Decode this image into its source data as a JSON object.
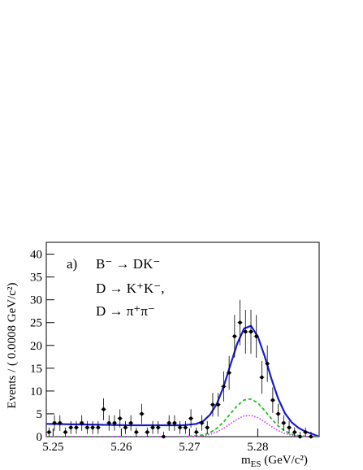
{
  "chart_data": {
    "type": "fit",
    "y_label": "Events / ( 0.0008 GeV/c²)",
    "x_label": {
      "main": "m",
      "sub": "ES",
      "rest": " (GeV/c²)"
    },
    "annotations": [
      "a)",
      "B⁻ → DK⁻",
      "D → K⁺K⁻,",
      "D → π⁺π⁻"
    ],
    "xlim": [
      5.249,
      5.289
    ],
    "ylim": [
      0,
      42.6
    ],
    "xticks": [
      5.25,
      5.26,
      5.27,
      5.28
    ],
    "yticks": [
      0,
      5,
      10,
      15,
      20,
      25,
      30,
      35,
      40
    ],
    "x": [
      5.2494,
      5.2502,
      5.251,
      5.2518,
      5.2526,
      5.2534,
      5.2542,
      5.255,
      5.2558,
      5.2566,
      5.2574,
      5.2582,
      5.259,
      5.2598,
      5.2606,
      5.2614,
      5.2622,
      5.263,
      5.2638,
      5.2646,
      5.2654,
      5.2662,
      5.267,
      5.2678,
      5.2686,
      5.2694,
      5.2702,
      5.271,
      5.2718,
      5.2726,
      5.2734,
      5.2742,
      5.275,
      5.2758,
      5.2766,
      5.2774,
      5.2782,
      5.279,
      5.2798,
      5.2806,
      5.2814,
      5.2822,
      5.283,
      5.2838,
      5.2846,
      5.2854,
      5.2862,
      5.287,
      5.2878
    ],
    "values": [
      1,
      3,
      3,
      1,
      2,
      2,
      3,
      2,
      2,
      2,
      6,
      3,
      3,
      4,
      2,
      3,
      1,
      5,
      1,
      2,
      2,
      0,
      3,
      3,
      2,
      2,
      4,
      1,
      3,
      2,
      7,
      7,
      11,
      14,
      22,
      25,
      23,
      23,
      22,
      13,
      16,
      8,
      5,
      3,
      2,
      1,
      0,
      1,
      0
    ],
    "errors": [
      1,
      1.7,
      1.7,
      1,
      1.4,
      1.4,
      1.7,
      1.4,
      1.4,
      1.4,
      2.4,
      1.7,
      1.7,
      2,
      1.4,
      1.7,
      1,
      2.2,
      1,
      1.4,
      1.4,
      1.1,
      1.7,
      1.7,
      1.4,
      1.4,
      2,
      1,
      1.7,
      1.4,
      2.6,
      2.6,
      3.3,
      3.7,
      4.7,
      5,
      4.8,
      4.8,
      4.7,
      3.6,
      4,
      2.8,
      2.2,
      1.7,
      1.4,
      1,
      1.1,
      1,
      1.1
    ],
    "color": "#000000",
    "curve_x": [
      5.249,
      5.253,
      5.257,
      5.261,
      5.265,
      5.269,
      5.271,
      5.272,
      5.273,
      5.274,
      5.275,
      5.276,
      5.277,
      5.278,
      5.279,
      5.28,
      5.281,
      5.282,
      5.283,
      5.284,
      5.285,
      5.286,
      5.287,
      5.288,
      5.289
    ],
    "curves": [
      {
        "color": "#1a1acc",
        "style": "solid",
        "values": [
          2.8,
          2.7,
          2.6,
          2.5,
          2.5,
          2.5,
          2.8,
          3.4,
          4.8,
          7.2,
          11.0,
          15.8,
          20.4,
          23.7,
          24.3,
          22.0,
          17.7,
          12.7,
          8.3,
          5.1,
          3.1,
          1.9,
          1.1,
          0.6,
          0
        ]
      },
      {
        "color": "#22bb22",
        "style": "dashed",
        "values": [
          0,
          0,
          0,
          0,
          0,
          0.01,
          0.14,
          0.38,
          0.9,
          1.83,
          3.25,
          5.04,
          6.81,
          8.03,
          8.25,
          7.39,
          5.78,
          3.93,
          2.33,
          1.21,
          0.55,
          0.22,
          0.07,
          0.02,
          0
        ]
      },
      {
        "color": "#cc44ee",
        "style": "dotted",
        "values": [
          0,
          0,
          0,
          0,
          0,
          0.01,
          0.08,
          0.22,
          0.51,
          1.03,
          1.84,
          2.85,
          3.85,
          4.54,
          4.67,
          4.18,
          3.27,
          2.23,
          1.32,
          0.69,
          0.31,
          0.12,
          0.04,
          0.01,
          0
        ]
      }
    ]
  }
}
